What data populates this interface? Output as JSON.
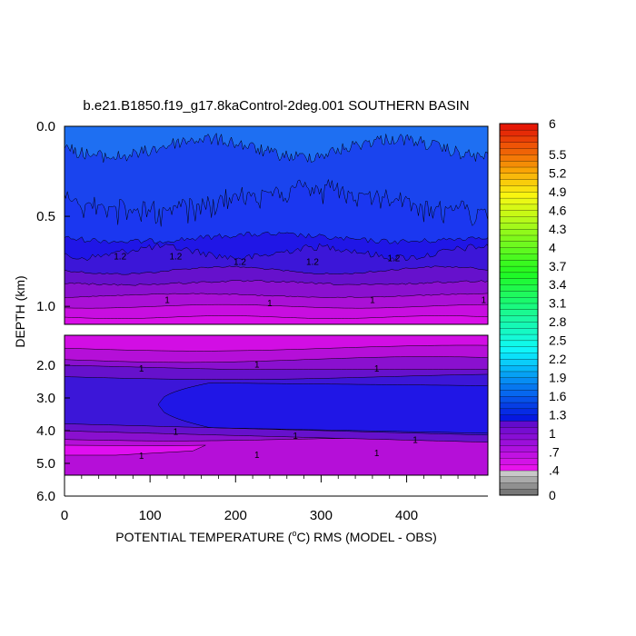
{
  "chart_data": {
    "type": "heatmap",
    "title": "b.e21.B1850.f19_g17.8kaControl-2deg.001 SOUTHERN BASIN",
    "xlabel": "POTENTIAL TEMPERATURE (",
    "xlabel_degree": "o",
    "xlabel_rest": "C) RMS (MODEL - OBS)",
    "ylabel": "DEPTH (km)",
    "xlim": [
      0,
      495
    ],
    "x_ticks": [
      "0",
      "100",
      "200",
      "300",
      "400"
    ],
    "x_tick_values": [
      0,
      100,
      200,
      300,
      400
    ],
    "upper_panel": {
      "ylim_km": [
        0.0,
        1.1
      ],
      "y_ticks": [
        "0.0",
        "0.5",
        "1.0"
      ],
      "y_tick_values": [
        0.0,
        0.5,
        1.0
      ]
    },
    "lower_panel": {
      "ylim_km": [
        1.1,
        6.0
      ],
      "y_ticks": [
        "2.0",
        "3.0",
        "4.0",
        "5.0",
        "6.0"
      ],
      "y_tick_values": [
        2.0,
        3.0,
        4.0,
        5.0,
        6.0
      ]
    },
    "contour_labels": [
      {
        "panel": "upper",
        "x": 65,
        "depth_km": 0.72,
        "text": "1.2"
      },
      {
        "panel": "upper",
        "x": 130,
        "depth_km": 0.72,
        "text": "1.2"
      },
      {
        "panel": "upper",
        "x": 205,
        "depth_km": 0.75,
        "text": "1.2"
      },
      {
        "panel": "upper",
        "x": 290,
        "depth_km": 0.75,
        "text": "1.2"
      },
      {
        "panel": "upper",
        "x": 385,
        "depth_km": 0.73,
        "text": "1.2"
      },
      {
        "panel": "upper",
        "x": 120,
        "depth_km": 0.96,
        "text": "1"
      },
      {
        "panel": "upper",
        "x": 240,
        "depth_km": 0.98,
        "text": "1"
      },
      {
        "panel": "upper",
        "x": 360,
        "depth_km": 0.96,
        "text": "1"
      },
      {
        "panel": "upper",
        "x": 490,
        "depth_km": 0.96,
        "text": "1"
      },
      {
        "panel": "lower",
        "x": 90,
        "depth_km": 2.25,
        "text": "1"
      },
      {
        "panel": "lower",
        "x": 225,
        "depth_km": 2.1,
        "text": "1"
      },
      {
        "panel": "lower",
        "x": 365,
        "depth_km": 2.25,
        "text": "1"
      },
      {
        "panel": "lower",
        "x": 130,
        "depth_km": 4.45,
        "text": "1"
      },
      {
        "panel": "lower",
        "x": 270,
        "depth_km": 4.6,
        "text": "1"
      },
      {
        "panel": "lower",
        "x": 410,
        "depth_km": 4.75,
        "text": "1"
      },
      {
        "panel": "lower",
        "x": 90,
        "depth_km": 5.3,
        "text": "1"
      },
      {
        "panel": "lower",
        "x": 225,
        "depth_km": 5.27,
        "text": "1"
      },
      {
        "panel": "lower",
        "x": 365,
        "depth_km": 5.2,
        "text": "1"
      }
    ],
    "colorbar": {
      "min": 0,
      "max": 6,
      "step": 0.1,
      "labels": [
        "6",
        "5.5",
        "5.2",
        "4.9",
        "4.6",
        "4.3",
        "4",
        "3.7",
        "3.4",
        "3.1",
        "2.8",
        "2.5",
        "2.2",
        "1.9",
        "1.6",
        "1.3",
        "1",
        ".7",
        ".4",
        "0"
      ],
      "label_values": [
        6,
        5.5,
        5.2,
        4.9,
        4.6,
        4.3,
        4.0,
        3.7,
        3.4,
        3.1,
        2.8,
        2.5,
        2.2,
        1.9,
        1.6,
        1.3,
        1.0,
        0.7,
        0.4,
        0
      ]
    },
    "colors": {
      "band_1_6": "#1e6ff2",
      "band_1_4": "#1a44ee",
      "band_1_3": "#1b37f0",
      "band_1_2": "#2016e6",
      "band_1_1": "#3c16d8",
      "band_1_0": "#6611cc",
      "band_0_9": "#8a10cf",
      "band_0_8": "#aa10d6",
      "band_0_7": "#c80ee0",
      "band_0_6": "#d90ee8"
    }
  }
}
